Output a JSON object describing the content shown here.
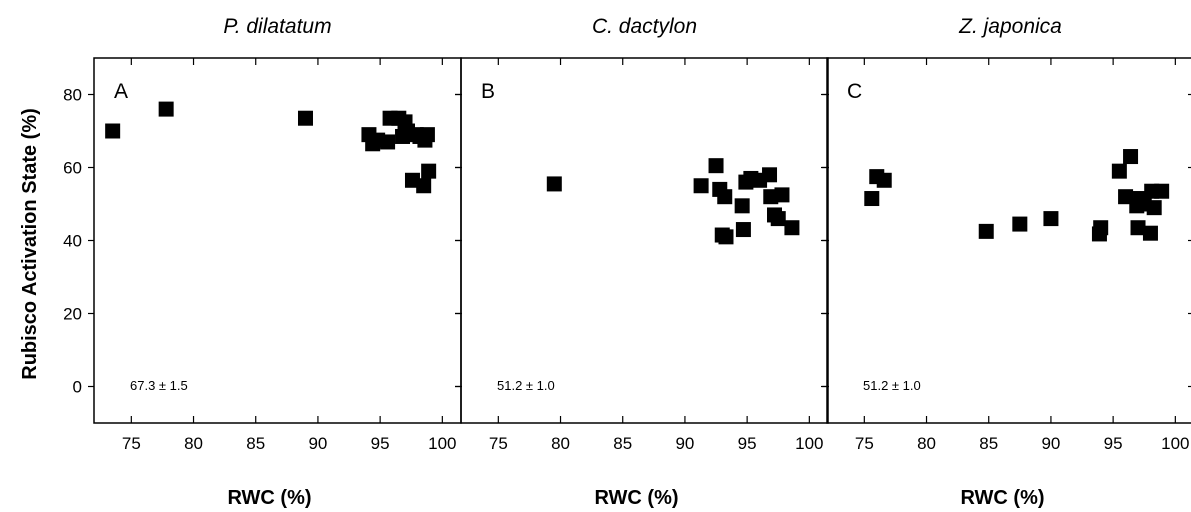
{
  "chart_data": {
    "type": "scatter",
    "ylabel": "Rubisco Activation State (%)",
    "xlim": [
      72,
      101.5
    ],
    "ylim": [
      -10,
      90
    ],
    "xticks": [
      75,
      80,
      85,
      90,
      95,
      100
    ],
    "yticks": [
      0,
      20,
      40,
      60,
      80
    ],
    "marker_color": "#000000",
    "panels": [
      {
        "title": "P. dilatatum",
        "label": "A",
        "xlabel": "RWC (%)",
        "annotation": "67.3 ± 1.5",
        "x": [
          73.5,
          77.8,
          89.0,
          94.1,
          94.4,
          94.8,
          95.6,
          95.8,
          96.5,
          96.8,
          97.0,
          97.2,
          97.6,
          97.9,
          98.2,
          98.5,
          98.6,
          98.8,
          98.9
        ],
        "y": [
          70,
          76,
          73.5,
          69,
          66.5,
          67.5,
          67,
          73.5,
          73.5,
          68.5,
          72.5,
          70,
          56.5,
          69,
          68.5,
          55,
          67.5,
          69,
          59
        ]
      },
      {
        "title": "C. dactylon",
        "label": "B",
        "xlabel": "RWC (%)",
        "annotation": "51.2 ± 1.0",
        "x": [
          79.5,
          91.3,
          92.5,
          92.8,
          93.0,
          93.2,
          93.3,
          94.6,
          94.7,
          94.9,
          95.3,
          96.0,
          96.8,
          96.9,
          97.2,
          97.5,
          97.8,
          98.6
        ],
        "y": [
          55.5,
          55,
          60.5,
          54,
          41.5,
          52,
          41,
          49.5,
          43,
          56,
          57,
          56.5,
          58,
          52,
          47,
          46,
          52.5,
          43.5
        ]
      },
      {
        "title": "Z. japonica",
        "label": "C",
        "xlabel": "RWC (%)",
        "annotation": "51.2 ± 1.0",
        "x": [
          75.6,
          76.0,
          76.6,
          84.8,
          87.5,
          90.0,
          93.9,
          94.0,
          95.5,
          96.0,
          96.4,
          96.9,
          97.0,
          97.2,
          97.5,
          98.0,
          98.1,
          98.3,
          98.9
        ],
        "y": [
          51.5,
          57.5,
          56.5,
          42.5,
          44.5,
          46,
          41.8,
          43.5,
          59,
          52,
          63,
          49.5,
          43.5,
          51.5,
          50,
          42,
          53.5,
          49,
          53.5
        ]
      }
    ]
  }
}
